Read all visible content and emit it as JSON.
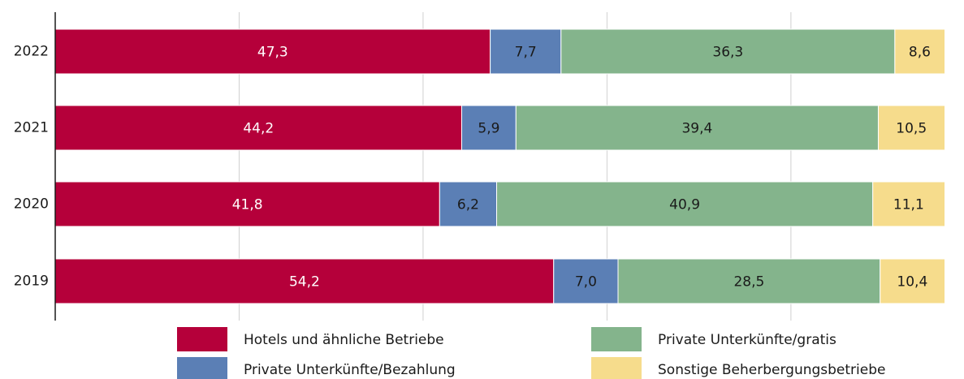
{
  "chart_data": {
    "type": "stacked_barh",
    "categories": [
      "2022",
      "2021",
      "2020",
      "2019"
    ],
    "series": [
      {
        "name": "Hotels und ähnliche Betriebe",
        "color": "#b5003a",
        "label_color": "#ffffff",
        "values": [
          47.3,
          44.2,
          41.8,
          54.2
        ],
        "value_labels": [
          "47,3",
          "44,2",
          "41,8",
          "54,2"
        ]
      },
      {
        "name": "Private Unterkünfte/Bezahlung",
        "color": "#5b7fb5",
        "label_color": "#1a1a1a",
        "values": [
          7.7,
          5.9,
          6.2,
          7.0
        ],
        "value_labels": [
          "7,7",
          "5,9",
          "6,2",
          "7,0"
        ]
      },
      {
        "name": "Private Unterkünfte/gratis",
        "color": "#84b48c",
        "label_color": "#1a1a1a",
        "values": [
          36.3,
          39.4,
          40.9,
          28.5
        ],
        "value_labels": [
          "36,3",
          "39,4",
          "40,9",
          "28,5"
        ]
      },
      {
        "name": "Sonstige Beherbergungsbetriebe",
        "color": "#f6dc8c",
        "label_color": "#1a1a1a",
        "values": [
          8.6,
          10.5,
          11.1,
          10.4
        ],
        "value_labels": [
          "8,6",
          "10,5",
          "11,1",
          "10,4"
        ]
      }
    ],
    "xlim": [
      0,
      96.7
    ],
    "xticks": [
      0,
      20,
      40,
      60,
      80
    ],
    "grid": true
  }
}
